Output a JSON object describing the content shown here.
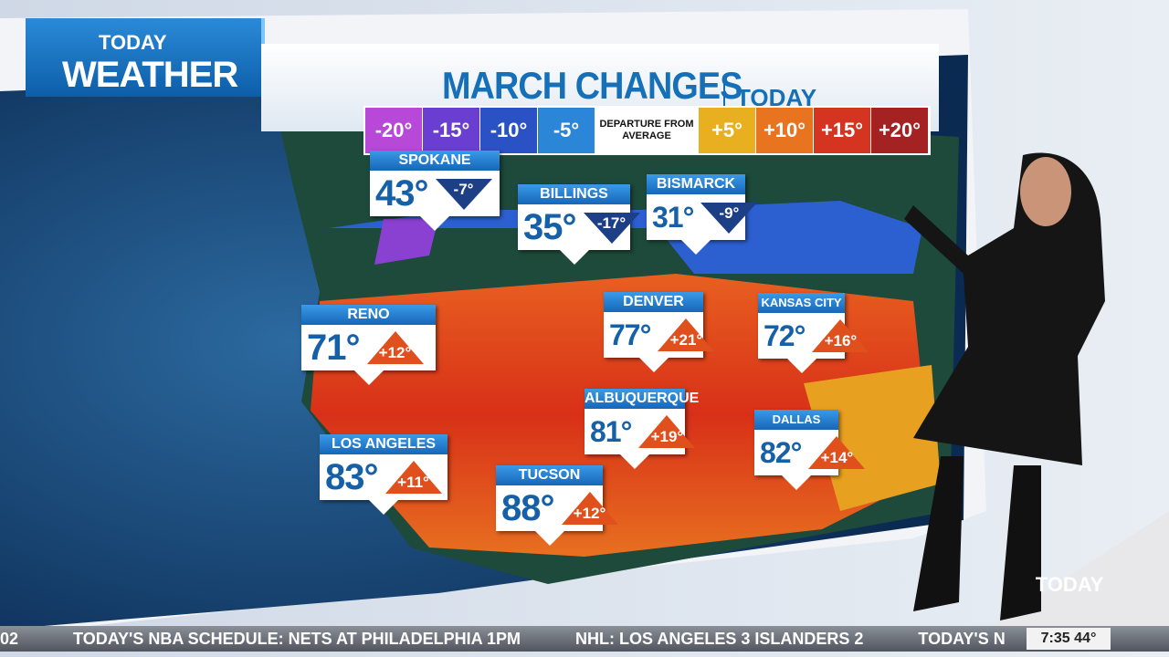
{
  "logo": {
    "brand": "TODAY",
    "section": "WEATHER"
  },
  "header": {
    "title": "MARCH CHANGES",
    "subtitle": "TODAY"
  },
  "legend": [
    "-20°",
    "-15°",
    "-10°",
    "-5°",
    "DEPARTURE FROM AVERAGE",
    "+5°",
    "+10°",
    "+15°",
    "+20°"
  ],
  "cities": [
    {
      "name": "SPOKANE",
      "temp": "43°",
      "departure": "-7°"
    },
    {
      "name": "BILLINGS",
      "temp": "35°",
      "departure": "-17°"
    },
    {
      "name": "BISMARCK",
      "temp": "31°",
      "departure": "-9°"
    },
    {
      "name": "RENO",
      "temp": "71°",
      "departure": "+12°"
    },
    {
      "name": "DENVER",
      "temp": "77°",
      "departure": "+21°"
    },
    {
      "name": "KANSAS CITY",
      "temp": "72°",
      "departure": "+16°"
    },
    {
      "name": "ALBUQUERQUE",
      "temp": "81°",
      "departure": "+19°"
    },
    {
      "name": "LOS ANGELES",
      "temp": "83°",
      "departure": "+11°"
    },
    {
      "name": "TUCSON",
      "temp": "88°",
      "departure": "+12°"
    },
    {
      "name": "DALLAS",
      "temp": "82°",
      "departure": "+14°"
    }
  ],
  "ticker": [
    "02",
    "TODAY'S NBA SCHEDULE: NETS AT PHILADELPHIA 1PM",
    "NHL: LOS ANGELES 3 ISLANDERS 2",
    "TODAY'S N"
  ],
  "clock": {
    "time": "7:35",
    "temp": "44°"
  },
  "channel_logo": "TODAY"
}
